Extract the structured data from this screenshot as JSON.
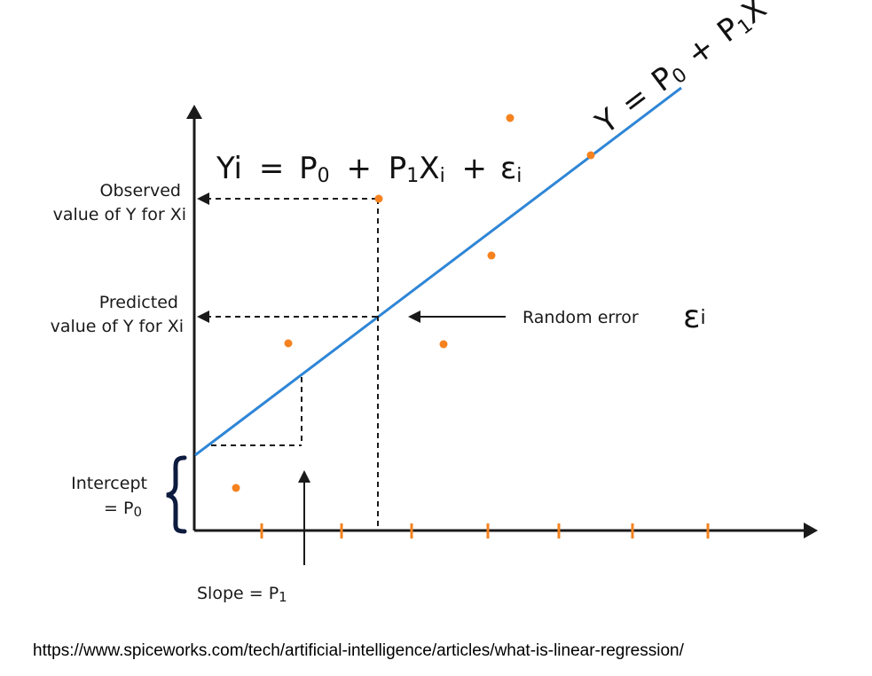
{
  "colors": {
    "line": "#2f86d6",
    "points": "#f5821f",
    "ticks": "#f5821f",
    "axes": "#1a1a1a",
    "brace": "#0d1b3e"
  },
  "equations": {
    "model_main": "Yi = P0 + P1 Xi + εi",
    "model_y": "Yi",
    "model_eq": "=",
    "model_p": "P",
    "model_p0_sub": "0",
    "model_plus": "+",
    "model_p1": "P",
    "model_p1_sub": "1",
    "model_x": "X",
    "model_xi_sub": "i",
    "model_plus2": "+",
    "model_eps": "ε",
    "model_eps_sub": "i",
    "line_label_y": "Y",
    "line_label_eq": "=",
    "line_label_p0": "P",
    "line_label_p0_sub": "0",
    "line_label_plus": "+",
    "line_label_p1": "P",
    "line_label_p1_sub": "1",
    "line_label_x": "X"
  },
  "labels": {
    "observed_line1": "Observed",
    "observed_line2": "value of Y for Xi",
    "predicted_line1": "Predicted",
    "predicted_line2": "value of Y for Xi",
    "random_error": "Random error",
    "random_error_symbol": "ε",
    "random_error_sub": "i",
    "intercept_line1": "Intercept",
    "intercept_line2": "= P",
    "intercept_sub": "0",
    "slope": "Slope = P",
    "slope_sub": "1"
  },
  "source_url": "https://www.spiceworks.com/tech/artificial-intelligence/articles/what-is-linear-regression/"
}
